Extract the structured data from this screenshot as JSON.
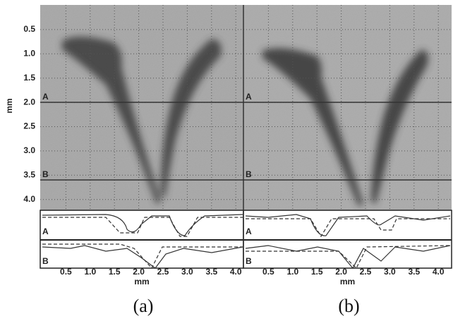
{
  "y_axis": {
    "label": "mm",
    "ticks": [
      "0.5",
      "1.0",
      "1.5",
      "2.0",
      "2.5",
      "3.0",
      "3.5",
      "4.0"
    ]
  },
  "panels": [
    {
      "caption": "(a)",
      "x_label": "mm",
      "x_ticks": [
        "0.5",
        "1.0",
        "1.5",
        "2.0",
        "2.5",
        "3.0",
        "3.5",
        "4.0"
      ],
      "image_labels": [
        "A",
        "B"
      ],
      "profile_labels": [
        "A",
        "B"
      ]
    },
    {
      "caption": "(b)",
      "x_label": "mm",
      "x_ticks": [
        "0.5",
        "1.0",
        "1.5",
        "2.0",
        "2.5",
        "3.0",
        "3.5",
        "4.0"
      ],
      "image_labels": [
        "A",
        "B"
      ],
      "profile_labels": [
        "A",
        "B"
      ]
    }
  ]
}
